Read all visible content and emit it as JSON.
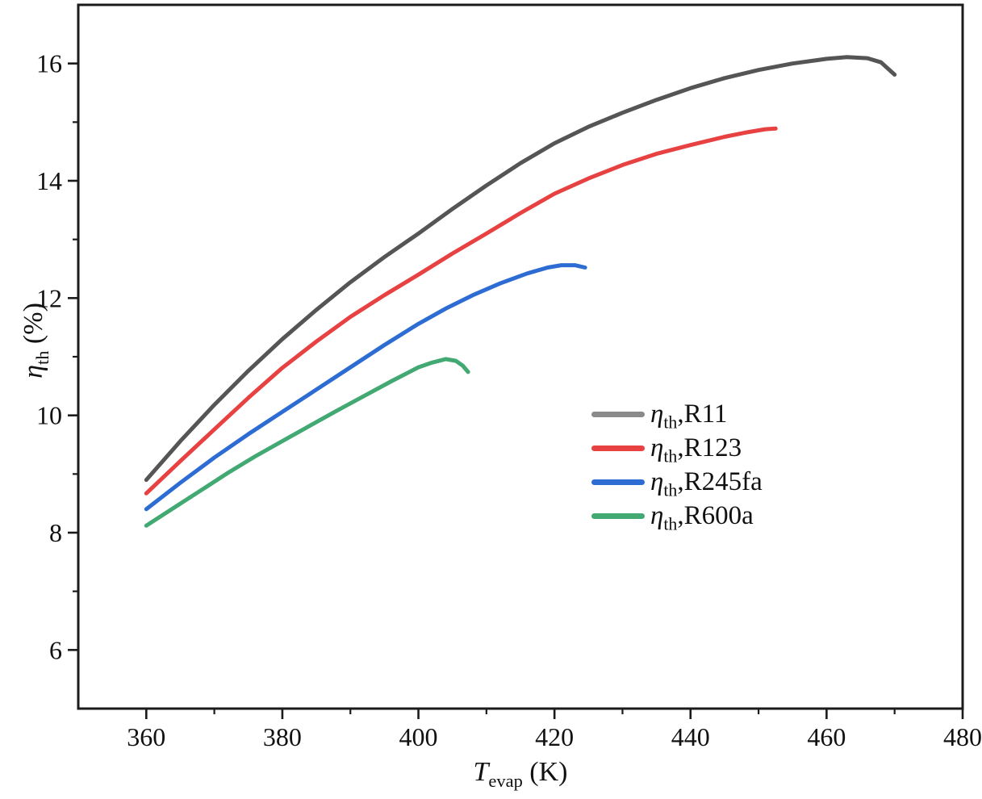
{
  "figure": {
    "background": "#ffffff",
    "frame_color": "#1b1b1b"
  },
  "chart_data": {
    "type": "line",
    "title": "",
    "xlabel": {
      "symbol": "T",
      "sub": "evap",
      "rest": " (K)"
    },
    "ylabel": {
      "symbol": "η",
      "sub": "th",
      "rest": " (%)"
    },
    "xlim": [
      350,
      480
    ],
    "ylim": [
      5,
      17
    ],
    "x_major_ticks": [
      360,
      380,
      400,
      420,
      440,
      460,
      480
    ],
    "x_minor_ticks": [
      370,
      390,
      410,
      430,
      450,
      470
    ],
    "y_major_ticks": [
      6,
      8,
      10,
      12,
      14,
      16
    ],
    "y_minor_ticks": [
      7,
      9,
      11,
      13,
      15
    ],
    "grid": false,
    "legend_position": "inside-right-middle",
    "series": [
      {
        "name": "ηth,R11",
        "legend": {
          "symbol": "η",
          "sub": "th",
          "rest": ",R11"
        },
        "color": "#555555",
        "swatch_color": "#8a8a8a",
        "points": [
          [
            360,
            8.9
          ],
          [
            365,
            9.56
          ],
          [
            370,
            10.18
          ],
          [
            375,
            10.76
          ],
          [
            380,
            11.3
          ],
          [
            385,
            11.8
          ],
          [
            390,
            12.27
          ],
          [
            395,
            12.7
          ],
          [
            400,
            13.1
          ],
          [
            405,
            13.52
          ],
          [
            410,
            13.92
          ],
          [
            415,
            14.3
          ],
          [
            420,
            14.64
          ],
          [
            425,
            14.92
          ],
          [
            430,
            15.16
          ],
          [
            435,
            15.38
          ],
          [
            440,
            15.58
          ],
          [
            445,
            15.75
          ],
          [
            450,
            15.89
          ],
          [
            455,
            16.0
          ],
          [
            460,
            16.08
          ],
          [
            463,
            16.11
          ],
          [
            466,
            16.09
          ],
          [
            468,
            16.02
          ],
          [
            470,
            15.81
          ]
        ]
      },
      {
        "name": "ηth,R123",
        "legend": {
          "symbol": "η",
          "sub": "th",
          "rest": ",R123"
        },
        "color": "#e74142",
        "swatch_color": "#e74142",
        "points": [
          [
            360,
            8.67
          ],
          [
            365,
            9.22
          ],
          [
            370,
            9.76
          ],
          [
            375,
            10.3
          ],
          [
            380,
            10.81
          ],
          [
            385,
            11.26
          ],
          [
            390,
            11.68
          ],
          [
            395,
            12.05
          ],
          [
            400,
            12.4
          ],
          [
            405,
            12.76
          ],
          [
            410,
            13.1
          ],
          [
            415,
            13.45
          ],
          [
            420,
            13.78
          ],
          [
            425,
            14.04
          ],
          [
            430,
            14.27
          ],
          [
            435,
            14.46
          ],
          [
            440,
            14.61
          ],
          [
            445,
            14.75
          ],
          [
            448,
            14.82
          ],
          [
            451,
            14.88
          ],
          [
            452.5,
            14.89
          ]
        ]
      },
      {
        "name": "ηth,R245fa",
        "legend": {
          "symbol": "η",
          "sub": "th",
          "rest": ",R245fa"
        },
        "color": "#2d6cd2",
        "swatch_color": "#2d6cd2",
        "points": [
          [
            360,
            8.4
          ],
          [
            365,
            8.85
          ],
          [
            370,
            9.28
          ],
          [
            375,
            9.68
          ],
          [
            380,
            10.06
          ],
          [
            385,
            10.44
          ],
          [
            390,
            10.82
          ],
          [
            395,
            11.2
          ],
          [
            400,
            11.56
          ],
          [
            404,
            11.82
          ],
          [
            408,
            12.05
          ],
          [
            412,
            12.25
          ],
          [
            416,
            12.42
          ],
          [
            419,
            12.52
          ],
          [
            421,
            12.56
          ],
          [
            423,
            12.56
          ],
          [
            424.5,
            12.52
          ]
        ]
      },
      {
        "name": "ηth,R600a",
        "legend": {
          "symbol": "η",
          "sub": "th",
          "rest": ",R600a"
        },
        "color": "#42a973",
        "swatch_color": "#42a973",
        "points": [
          [
            360,
            8.12
          ],
          [
            364,
            8.42
          ],
          [
            368,
            8.72
          ],
          [
            372,
            9.02
          ],
          [
            376,
            9.3
          ],
          [
            380,
            9.56
          ],
          [
            384,
            9.82
          ],
          [
            388,
            10.08
          ],
          [
            392,
            10.33
          ],
          [
            396,
            10.58
          ],
          [
            400,
            10.82
          ],
          [
            402,
            10.9
          ],
          [
            404,
            10.96
          ],
          [
            405.5,
            10.93
          ],
          [
            406.5,
            10.85
          ],
          [
            407.3,
            10.74
          ]
        ]
      }
    ]
  }
}
